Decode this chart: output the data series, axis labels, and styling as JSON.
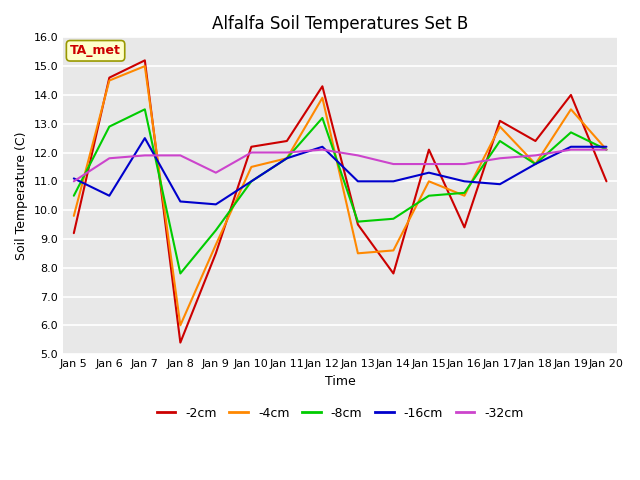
{
  "title": "Alfalfa Soil Temperatures Set B",
  "xlabel": "Time",
  "ylabel": "Soil Temperature (C)",
  "ylim": [
    5.0,
    16.0
  ],
  "yticks": [
    5.0,
    6.0,
    7.0,
    8.0,
    9.0,
    10.0,
    11.0,
    12.0,
    13.0,
    14.0,
    15.0,
    16.0
  ],
  "x_labels": [
    "Jan 5",
    "Jan 6",
    "Jan 7",
    "Jan 8",
    "Jan 9",
    "Jan 10",
    "Jan 11",
    "Jan 12",
    "Jan 13",
    "Jan 14",
    "Jan 15",
    "Jan 16",
    "Jan 17",
    "Jan 18",
    "Jan 19",
    "Jan 20"
  ],
  "series": {
    "-2cm": {
      "color": "#cc0000",
      "values": [
        9.2,
        14.6,
        15.2,
        5.4,
        8.5,
        12.2,
        12.4,
        14.3,
        9.5,
        7.8,
        12.1,
        9.4,
        13.1,
        12.4,
        14.0,
        11.0
      ]
    },
    "-4cm": {
      "color": "#ff8800",
      "values": [
        9.8,
        14.5,
        15.0,
        6.0,
        8.8,
        11.5,
        11.8,
        13.9,
        8.5,
        8.6,
        11.0,
        10.5,
        12.9,
        11.6,
        13.5,
        12.1
      ]
    },
    "-8cm": {
      "color": "#00cc00",
      "values": [
        10.5,
        12.9,
        13.5,
        7.8,
        9.3,
        11.0,
        11.8,
        13.2,
        9.6,
        9.7,
        10.5,
        10.6,
        12.4,
        11.6,
        12.7,
        12.1
      ]
    },
    "-16cm": {
      "color": "#0000cc",
      "values": [
        11.1,
        10.5,
        12.5,
        10.3,
        10.2,
        11.0,
        11.8,
        12.2,
        11.0,
        11.0,
        11.3,
        11.0,
        10.9,
        11.6,
        12.2,
        12.2
      ]
    },
    "-32cm": {
      "color": "#cc44cc",
      "values": [
        11.0,
        11.8,
        11.9,
        11.9,
        11.3,
        12.0,
        12.0,
        12.1,
        11.9,
        11.6,
        11.6,
        11.6,
        11.8,
        11.9,
        12.1,
        12.1
      ]
    }
  },
  "annotation_box": {
    "text": "TA_met",
    "facecolor": "#ffffcc",
    "edgecolor": "#999900",
    "textcolor": "#cc0000"
  },
  "fig_facecolor": "#ffffff",
  "plot_bg_color": "#e8e8e8",
  "grid_color": "#ffffff",
  "title_fontsize": 12,
  "axis_label_fontsize": 9,
  "tick_fontsize": 8,
  "linewidth": 1.5,
  "legend_fontsize": 9
}
